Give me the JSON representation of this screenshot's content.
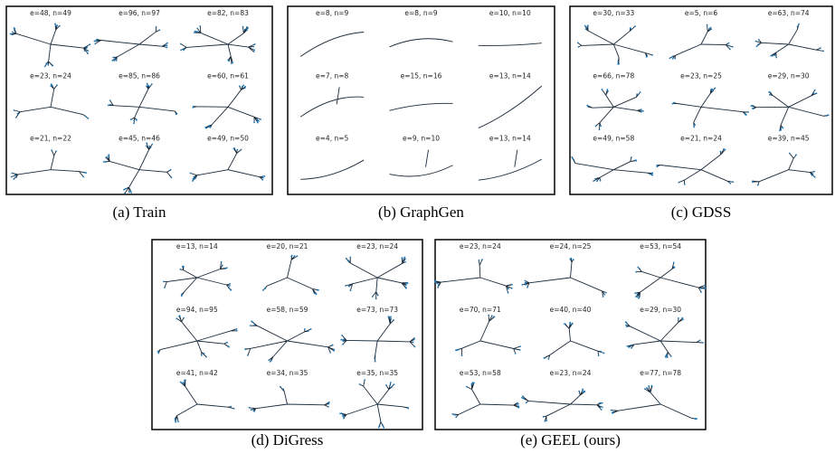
{
  "panels": [
    {
      "caption": "(a) Train",
      "labels": [
        "e=48, n=49",
        "e=96, n=97",
        "e=82, n=83",
        "e=23, n=24",
        "e=85, n=86",
        "e=60, n=61",
        "e=21, n=22",
        "e=45, n=46",
        "e=49, n=50"
      ]
    },
    {
      "caption": "(b) GraphGen",
      "labels": [
        "e=8, n=9",
        "e=8, n=9",
        "e=10, n=10",
        "e=7, n=8",
        "e=15, n=16",
        "e=13, n=14",
        "e=4, n=5",
        "e=9, n=10",
        "e=13, n=14"
      ]
    },
    {
      "caption": "(c) GDSS",
      "labels": [
        "e=30, n=33",
        "e=5, n=6",
        "e=63, n=74",
        "e=66, n=78",
        "e=23, n=25",
        "e=29, n=30",
        "e=49, n=58",
        "e=21, n=24",
        "e=39, n=45"
      ]
    },
    {
      "caption": "(d) DiGress",
      "labels": [
        "e=13, n=14",
        "e=20, n=21",
        "e=23, n=24",
        "e=94, n=95",
        "e=58, n=59",
        "e=73, n=73",
        "e=41, n=42",
        "e=34, n=35",
        "e=35, n=35"
      ]
    },
    {
      "caption": "(e) GEEL (ours)",
      "labels": [
        "e=23, n=24",
        "e=24, n=25",
        "e=53, n=54",
        "e=70, n=71",
        "e=40, n=40",
        "e=29, n=30",
        "e=53, n=58",
        "e=23, n=24",
        "e=77, n=78"
      ]
    }
  ]
}
